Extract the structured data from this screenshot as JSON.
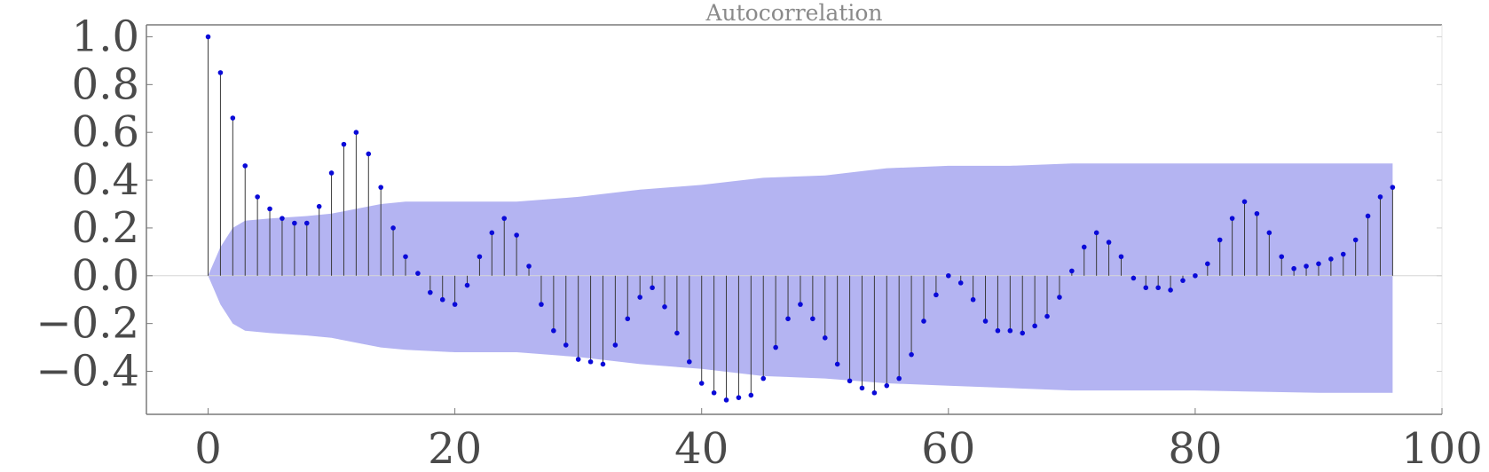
{
  "chart_data": {
    "type": "stem",
    "title": "Autocorrelation",
    "xlabel": "",
    "ylabel": "",
    "xlim": [
      -5,
      100
    ],
    "ylim": [
      -0.58,
      1.05
    ],
    "xticks": [
      0,
      20,
      40,
      60,
      80,
      100
    ],
    "yticks": [
      1.0,
      0.8,
      0.6,
      0.4,
      0.2,
      0.0,
      -0.2,
      -0.4
    ],
    "xtick_labels": [
      "0",
      "20",
      "40",
      "60",
      "80",
      "100"
    ],
    "ytick_labels": [
      "1.0",
      "0.8",
      "0.6",
      "0.4",
      "0.2",
      "0.0",
      "−0.2",
      "−0.4"
    ],
    "grid": false,
    "lags": [
      0,
      1,
      2,
      3,
      4,
      5,
      6,
      7,
      8,
      9,
      10,
      11,
      12,
      13,
      14,
      15,
      16,
      17,
      18,
      19,
      20,
      21,
      22,
      23,
      24,
      25,
      26,
      27,
      28,
      29,
      30,
      31,
      32,
      33,
      34,
      35,
      36,
      37,
      38,
      39,
      40,
      41,
      42,
      43,
      44,
      45,
      46,
      47,
      48,
      49,
      50,
      51,
      52,
      53,
      54,
      55,
      56,
      57,
      58,
      59,
      60,
      61,
      62,
      63,
      64,
      65,
      66,
      67,
      68,
      69,
      70,
      71,
      72,
      73,
      74,
      75,
      76,
      77,
      78,
      79,
      80,
      81,
      82,
      83,
      84,
      85,
      86,
      87,
      88,
      89,
      90,
      91,
      92,
      93,
      94,
      95,
      96
    ],
    "values": [
      1.0,
      0.85,
      0.66,
      0.46,
      0.33,
      0.28,
      0.24,
      0.22,
      0.22,
      0.29,
      0.43,
      0.55,
      0.6,
      0.51,
      0.37,
      0.2,
      0.08,
      0.01,
      -0.07,
      -0.1,
      -0.12,
      -0.04,
      0.08,
      0.18,
      0.24,
      0.17,
      0.04,
      -0.12,
      -0.23,
      -0.29,
      -0.35,
      -0.36,
      -0.37,
      -0.29,
      -0.18,
      -0.09,
      -0.05,
      -0.13,
      -0.24,
      -0.36,
      -0.45,
      -0.49,
      -0.52,
      -0.51,
      -0.5,
      -0.43,
      -0.3,
      -0.18,
      -0.12,
      -0.18,
      -0.26,
      -0.37,
      -0.44,
      -0.47,
      -0.49,
      -0.46,
      -0.43,
      -0.33,
      -0.19,
      -0.08,
      0.0,
      -0.03,
      -0.1,
      -0.19,
      -0.23,
      -0.23,
      -0.24,
      -0.21,
      -0.17,
      -0.09,
      0.02,
      0.12,
      0.18,
      0.14,
      0.08,
      -0.01,
      -0.05,
      -0.05,
      -0.06,
      -0.02,
      0.0,
      0.05,
      0.15,
      0.24,
      0.31,
      0.26,
      0.18,
      0.08,
      0.03,
      0.04,
      0.05,
      0.07,
      0.09,
      0.15,
      0.25,
      0.33,
      0.37
    ],
    "confidence_band": {
      "lags": [
        0,
        1,
        2,
        3,
        5,
        8,
        10,
        12,
        14,
        16,
        20,
        25,
        30,
        35,
        40,
        45,
        50,
        55,
        60,
        65,
        70,
        80,
        90,
        96
      ],
      "upper": [
        0.0,
        0.12,
        0.2,
        0.23,
        0.24,
        0.25,
        0.26,
        0.28,
        0.3,
        0.31,
        0.31,
        0.31,
        0.33,
        0.36,
        0.38,
        0.41,
        0.42,
        0.45,
        0.46,
        0.46,
        0.47,
        0.47,
        0.47,
        0.47
      ],
      "lower": [
        0.0,
        -0.12,
        -0.2,
        -0.23,
        -0.24,
        -0.25,
        -0.26,
        -0.28,
        -0.3,
        -0.31,
        -0.32,
        -0.32,
        -0.34,
        -0.37,
        -0.39,
        -0.42,
        -0.43,
        -0.45,
        -0.46,
        -0.47,
        -0.48,
        -0.48,
        -0.49,
        -0.49
      ]
    },
    "colors": {
      "band": "#b4b4f2",
      "marker": "#0a0ad8",
      "stem": "#3a3a3a",
      "zero_line": "#d6d6d6",
      "axis": "#7a7a7a"
    }
  }
}
